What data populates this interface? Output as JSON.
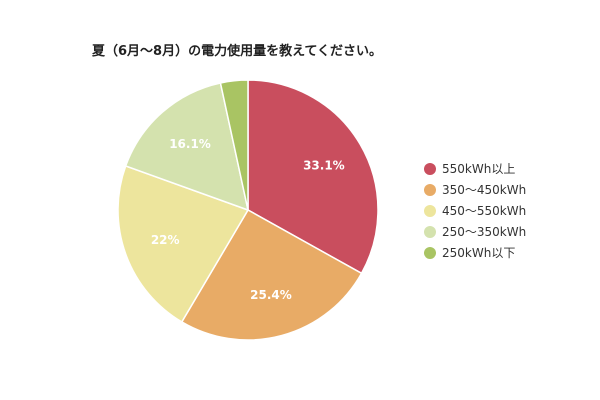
{
  "chart_data": {
    "type": "pie",
    "title": "夏（6月〜8月）の電力使用量を教えてください。",
    "categories": [
      "550kWh以上",
      "350〜450kWh",
      "450〜550kWh",
      "250〜350kWh",
      "250kWh以下"
    ],
    "values": [
      33.1,
      25.4,
      22,
      16.1,
      3.4
    ],
    "labels": [
      "33.1%",
      "25.4%",
      "22%",
      "16.1%",
      ""
    ],
    "colors": [
      "#c94e5e",
      "#e8ab66",
      "#ede59d",
      "#d4e2ae",
      "#a9c463"
    ],
    "legend_position": "right"
  }
}
